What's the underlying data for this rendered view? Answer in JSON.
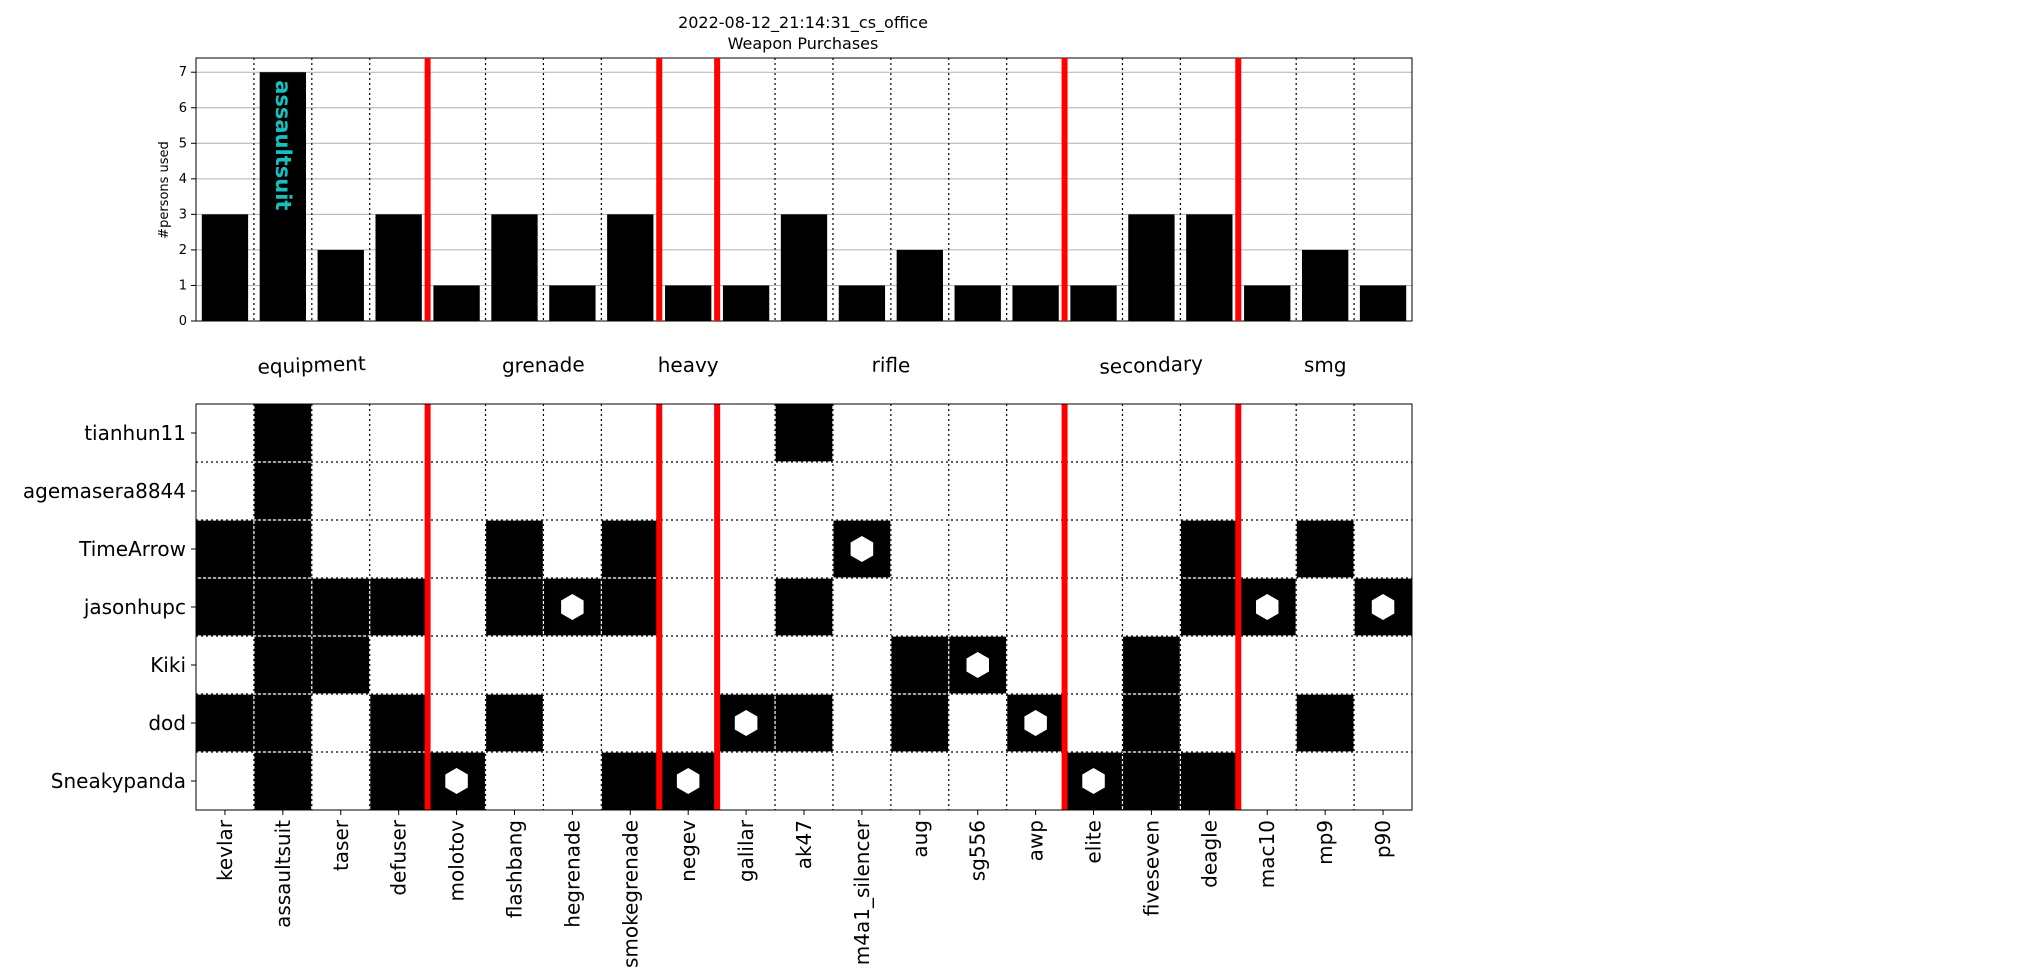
{
  "chart_data": {
    "type": "bar",
    "title": "2022-08-12_21:14:31_cs_office",
    "subtitle": "Weapon Purchases",
    "ylabel": "#persons used",
    "ylim": [
      0,
      7.4
    ],
    "yticks": [
      "0",
      "1",
      "2",
      "3",
      "4",
      "5",
      "6",
      "7"
    ],
    "grid": true,
    "categories": [
      "kevlar",
      "assaultsuit",
      "taser",
      "defuser",
      "molotov",
      "flashbang",
      "hegrenade",
      "smokegrenade",
      "negev",
      "galilar",
      "ak47",
      "m4a1_silencer",
      "aug",
      "sg556",
      "awp",
      "elite",
      "fiveseven",
      "deagle",
      "mac10",
      "mp9",
      "p90"
    ],
    "values": [
      3,
      7,
      2,
      3,
      1,
      3,
      1,
      3,
      1,
      1,
      3,
      1,
      2,
      1,
      1,
      1,
      3,
      3,
      1,
      2,
      1
    ],
    "annotation": {
      "text": "assaultsuit",
      "category_index": 1
    },
    "groups": [
      {
        "name": "equipment",
        "start": 0,
        "end": 3
      },
      {
        "name": "grenade",
        "start": 4,
        "end": 7
      },
      {
        "name": "heavy",
        "start": 8,
        "end": 8
      },
      {
        "name": "rifle",
        "start": 9,
        "end": 14
      },
      {
        "name": "secondary",
        "start": 15,
        "end": 17
      },
      {
        "name": "smg",
        "start": 18,
        "end": 20
      }
    ],
    "group_label_tilt": [
      -2,
      -1,
      0,
      1,
      -2,
      1
    ],
    "players": [
      "tianhun11",
      "agemasera8844",
      "TimeArrow",
      "jasonhupc",
      "Kiki",
      "dod",
      "Sneakypanda"
    ],
    "purchases": [
      [
        0,
        1,
        0,
        0,
        0,
        0,
        0,
        0,
        0,
        0,
        1,
        0,
        0,
        0,
        0,
        0,
        0,
        0,
        0,
        0,
        0
      ],
      [
        0,
        1,
        0,
        0,
        0,
        0,
        0,
        0,
        0,
        0,
        0,
        0,
        0,
        0,
        0,
        0,
        0,
        0,
        0,
        0,
        0
      ],
      [
        1,
        1,
        0,
        0,
        0,
        1,
        0,
        1,
        0,
        0,
        0,
        1,
        0,
        0,
        0,
        0,
        0,
        1,
        0,
        1,
        0
      ],
      [
        1,
        1,
        1,
        1,
        0,
        1,
        1,
        1,
        0,
        0,
        1,
        0,
        0,
        0,
        0,
        0,
        0,
        1,
        1,
        0,
        1
      ],
      [
        0,
        1,
        1,
        0,
        0,
        0,
        0,
        0,
        0,
        0,
        0,
        0,
        1,
        1,
        0,
        0,
        1,
        0,
        0,
        0,
        0
      ],
      [
        1,
        1,
        0,
        1,
        0,
        1,
        0,
        0,
        0,
        1,
        1,
        0,
        1,
        0,
        1,
        0,
        1,
        0,
        0,
        1,
        0
      ],
      [
        0,
        1,
        0,
        1,
        1,
        0,
        0,
        1,
        1,
        0,
        0,
        0,
        0,
        0,
        0,
        1,
        1,
        1,
        0,
        0,
        0
      ]
    ],
    "hexagon_markers": [
      [
        2,
        11
      ],
      [
        3,
        6
      ],
      [
        3,
        18
      ],
      [
        3,
        20
      ],
      [
        4,
        13
      ],
      [
        5,
        9
      ],
      [
        5,
        14
      ],
      [
        6,
        4
      ],
      [
        6,
        8
      ],
      [
        6,
        15
      ]
    ],
    "colors": {
      "bar": "#000000",
      "separator": "#ff0000",
      "grid": "#b0b0b0",
      "annotation": "#17bfbf",
      "marker": "#ffffff"
    }
  }
}
